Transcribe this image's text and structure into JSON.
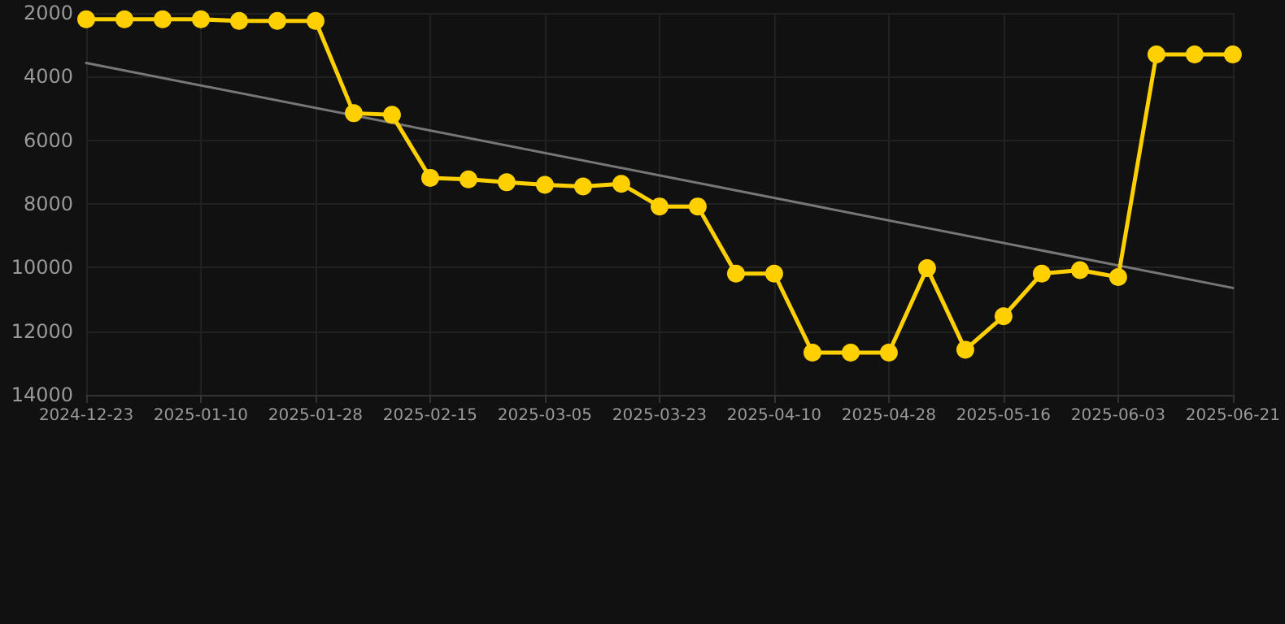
{
  "chart_data": {
    "type": "line",
    "x": [
      "2024-12-23",
      "2024-12-29",
      "2025-01-04",
      "2025-01-10",
      "2025-01-16",
      "2025-01-22",
      "2025-01-28",
      "2025-02-03",
      "2025-02-09",
      "2025-02-15",
      "2025-02-21",
      "2025-02-27",
      "2025-03-05",
      "2025-03-11",
      "2025-03-17",
      "2025-03-23",
      "2025-03-29",
      "2025-04-04",
      "2025-04-10",
      "2025-04-16",
      "2025-04-22",
      "2025-04-28",
      "2025-05-04",
      "2025-05-10",
      "2025-05-16",
      "2025-05-22",
      "2025-05-28",
      "2025-06-03",
      "2025-06-09",
      "2025-06-15",
      "2025-06-21"
    ],
    "series": [
      {
        "color": "#ffd000",
        "marker": "circle",
        "values": [
          2200,
          2200,
          2200,
          2200,
          2250,
          2250,
          2250,
          5150,
          5200,
          7180,
          7230,
          7320,
          7400,
          7450,
          7370,
          8080,
          8080,
          10190,
          10190,
          12670,
          12670,
          12670,
          10020,
          12580,
          11530,
          10190,
          10080,
          10300,
          3300,
          3300,
          3300
        ]
      },
      {
        "type": "line",
        "color": "#777777",
        "marker": "none",
        "x": [
          "2024-12-23",
          "2025-06-21"
        ],
        "values": [
          3570,
          10640
        ]
      }
    ],
    "xlim": [
      "2024-12-23",
      "2025-06-21"
    ],
    "xticks": [
      "2024-12-23",
      "2025-01-10",
      "2025-01-28",
      "2025-02-15",
      "2025-03-05",
      "2025-03-23",
      "2025-04-10",
      "2025-04-28",
      "2025-05-16",
      "2025-06-03",
      "2025-06-21"
    ],
    "ylim": [
      14000,
      2000
    ],
    "yticks": [
      2000,
      4000,
      6000,
      8000,
      10000,
      12000,
      14000
    ],
    "grid": true
  }
}
